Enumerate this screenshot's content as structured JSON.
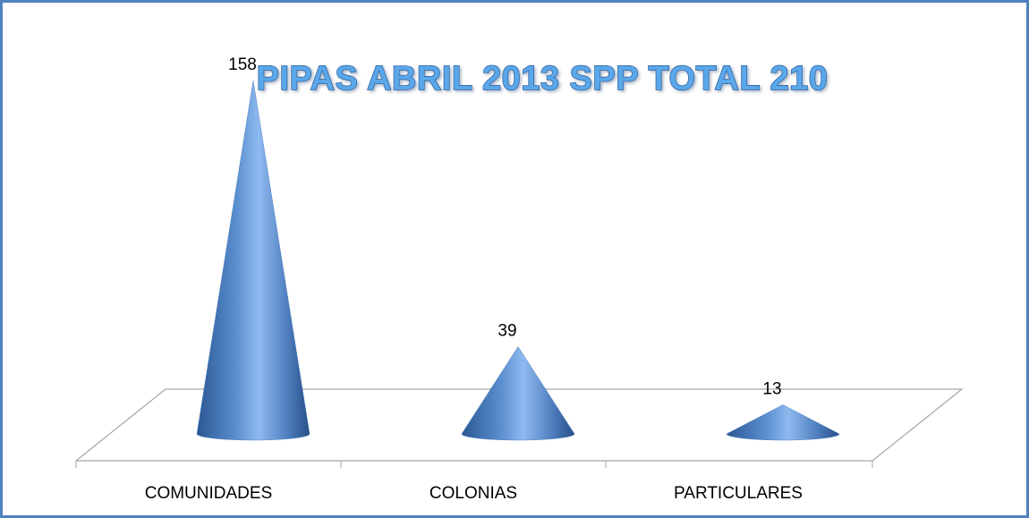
{
  "chart_data": {
    "type": "cone",
    "title": "PIPAS ABRIL 2013 SPP TOTAL 210",
    "categories": [
      "COMUNIDADES",
      "COLONIAS",
      "PARTICULARES"
    ],
    "values": [
      158,
      39,
      13
    ],
    "color": "#4f81bd"
  }
}
